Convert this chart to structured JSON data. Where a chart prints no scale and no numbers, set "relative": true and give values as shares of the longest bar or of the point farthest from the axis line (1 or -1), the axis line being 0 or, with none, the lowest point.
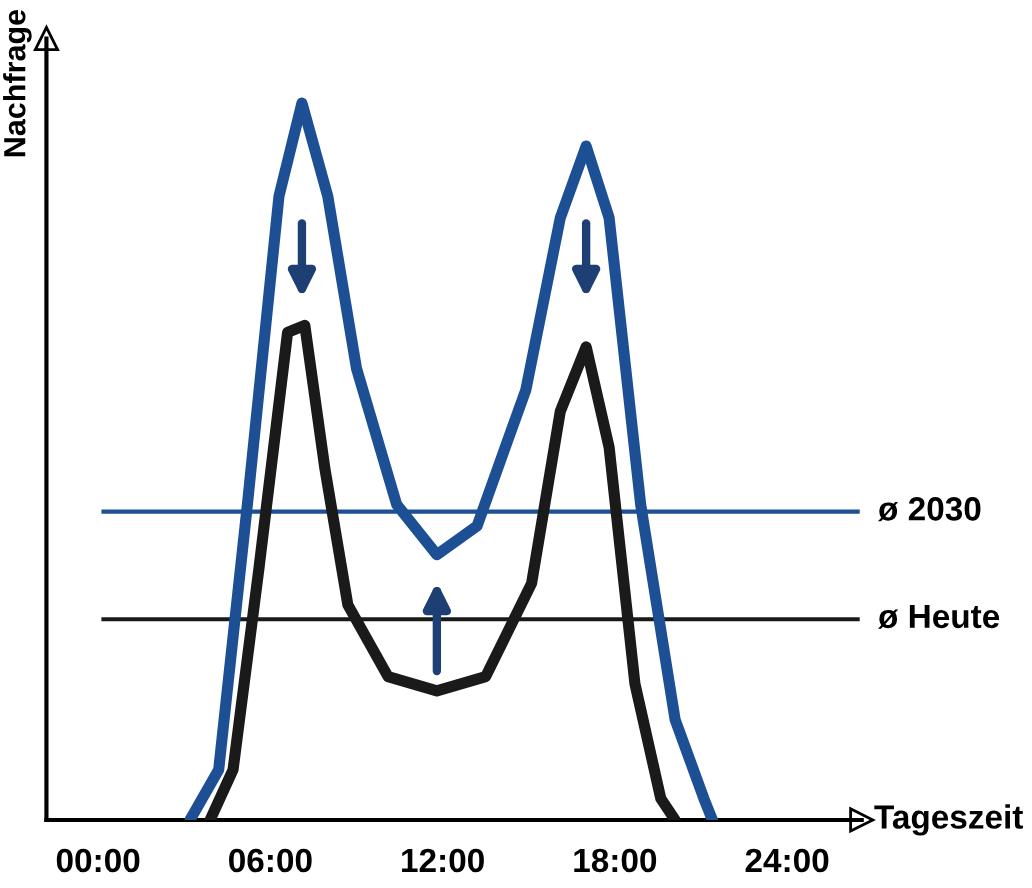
{
  "chart_data": {
    "type": "line",
    "relative": true,
    "xlabel": "Tageszeit",
    "ylabel": "Nachfrage",
    "xlim": [
      -1.8,
      26.6
    ],
    "xticks": [
      {
        "value": 0,
        "label": "00:00"
      },
      {
        "value": 6,
        "label": "06:00"
      },
      {
        "value": 12,
        "label": "12:00"
      },
      {
        "value": 18,
        "label": "18:00"
      },
      {
        "value": 24,
        "label": "24:00"
      }
    ],
    "tick_labels": "x",
    "grid": false,
    "legend": false,
    "marker": "none",
    "line_style": "solid",
    "series": [
      {
        "color": "#1d4f95",
        "x": [
          3.2,
          4.2,
          5.2,
          6.3,
          7.1,
          8.0,
          9.0,
          10.4,
          11.8,
          13.2,
          14.9,
          16.1,
          17.0,
          17.8,
          18.9,
          20.1,
          21.1,
          21.4
        ],
        "values": [
          0,
          0.07,
          0.44,
          0.87,
          1,
          0.87,
          0.63,
          0.44,
          0.37,
          0.41,
          0.6,
          0.84,
          0.94,
          0.84,
          0.44,
          0.14,
          0.03,
          0
        ]
      },
      {
        "color": "#1a1a1a",
        "x": [
          3.9,
          4.7,
          5.6,
          6.6,
          7.2,
          7.9,
          8.7,
          10.1,
          11.8,
          13.5,
          15.1,
          16.1,
          17.0,
          17.8,
          18.7,
          19.6,
          20.1
        ],
        "values": [
          0,
          0.07,
          0.35,
          0.68,
          0.69,
          0.49,
          0.3,
          0.2,
          0.18,
          0.2,
          0.33,
          0.57,
          0.66,
          0.52,
          0.19,
          0.03,
          0
        ]
      }
    ],
    "ref_lines": [
      {
        "axis": "y",
        "value": 0.43,
        "label": "ø 2030",
        "color": "#1d4f95"
      },
      {
        "axis": "y",
        "value": 0.28,
        "label": "ø Heute",
        "color": "#1a1a1a"
      }
    ]
  }
}
